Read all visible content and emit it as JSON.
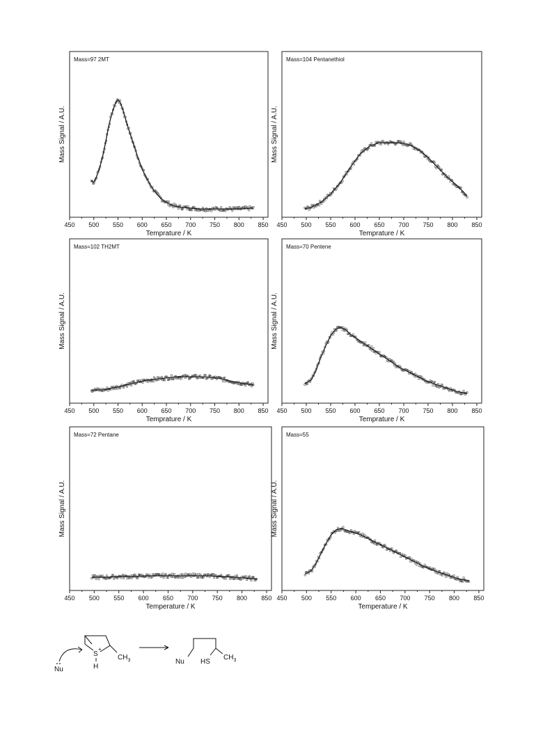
{
  "chart_data": [
    {
      "type": "scatter",
      "panel_label": "Mass=97 2MT",
      "xlabel": "Temprature / K",
      "ylabel": "Mass Signal / A.U.",
      "xlim": [
        450,
        860
      ],
      "ylim": [
        0,
        1
      ],
      "xticks": [
        "450",
        "500",
        "550",
        "600",
        "650",
        "700",
        "750",
        "800",
        "850"
      ],
      "series": [
        {
          "x": [
            495,
            500,
            505,
            510,
            515,
            520,
            525,
            530,
            535,
            540,
            545,
            550,
            555,
            560,
            565,
            570,
            580,
            590,
            600,
            610,
            620,
            630,
            640,
            650,
            660,
            670,
            680,
            700,
            720,
            740,
            760,
            780,
            800,
            830
          ],
          "y": [
            0.22,
            0.21,
            0.24,
            0.28,
            0.33,
            0.39,
            0.46,
            0.54,
            0.6,
            0.65,
            0.69,
            0.71,
            0.69,
            0.65,
            0.6,
            0.55,
            0.46,
            0.37,
            0.29,
            0.23,
            0.18,
            0.14,
            0.11,
            0.09,
            0.075,
            0.065,
            0.06,
            0.055,
            0.05,
            0.05,
            0.05,
            0.05,
            0.05,
            0.055
          ]
        }
      ]
    },
    {
      "type": "scatter",
      "panel_label": "Mass=104 Pentanethiol",
      "xlabel": "Temprature / K",
      "ylabel": "Mass Signal / A.U.",
      "xlim": [
        450,
        860
      ],
      "ylim": [
        0,
        1
      ],
      "xticks": [
        "450",
        "500",
        "550",
        "600",
        "650",
        "700",
        "750",
        "800",
        "850"
      ],
      "series": [
        {
          "x": [
            497,
            510,
            530,
            550,
            570,
            590,
            610,
            630,
            650,
            670,
            690,
            710,
            730,
            750,
            770,
            790,
            810,
            830
          ],
          "y": [
            0.05,
            0.06,
            0.09,
            0.14,
            0.21,
            0.3,
            0.38,
            0.43,
            0.45,
            0.45,
            0.45,
            0.44,
            0.41,
            0.36,
            0.3,
            0.24,
            0.19,
            0.13
          ]
        }
      ]
    },
    {
      "type": "scatter",
      "panel_label": "Mass=102 TH2MT",
      "xlabel": "Temprature / K",
      "ylabel": "Mass Signal / A.U.",
      "xlim": [
        450,
        860
      ],
      "ylim": [
        0,
        1
      ],
      "xticks": [
        "450",
        "500",
        "550",
        "600",
        "650",
        "700",
        "750",
        "800",
        "850"
      ],
      "series": [
        {
          "x": [
            495,
            520,
            550,
            580,
            610,
            640,
            670,
            700,
            730,
            760,
            790,
            810,
            830
          ],
          "y": [
            0.08,
            0.08,
            0.1,
            0.12,
            0.14,
            0.15,
            0.16,
            0.16,
            0.16,
            0.15,
            0.13,
            0.12,
            0.11
          ]
        }
      ]
    },
    {
      "type": "scatter",
      "panel_label": "Mass=70 Pentene",
      "xlabel": "Temprature / K",
      "ylabel": "Mass Signal / A.U.",
      "xlim": [
        450,
        860
      ],
      "ylim": [
        0,
        1
      ],
      "xticks": [
        "450",
        "500",
        "550",
        "600",
        "650",
        "700",
        "750",
        "800",
        "850"
      ],
      "series": [
        {
          "x": [
            497,
            510,
            520,
            530,
            540,
            550,
            560,
            570,
            580,
            590,
            610,
            630,
            650,
            670,
            690,
            710,
            730,
            750,
            770,
            790,
            810,
            830
          ],
          "y": [
            0.12,
            0.14,
            0.2,
            0.28,
            0.35,
            0.41,
            0.45,
            0.46,
            0.45,
            0.42,
            0.38,
            0.34,
            0.3,
            0.26,
            0.22,
            0.19,
            0.16,
            0.13,
            0.11,
            0.09,
            0.07,
            0.06
          ]
        }
      ]
    },
    {
      "type": "scatter",
      "panel_label": "Mass=72 Pentane",
      "xlabel": "Temperature / K",
      "ylabel": "Mass Signal / A.U.",
      "xlim": [
        450,
        860
      ],
      "ylim": [
        0,
        1
      ],
      "xticks": [
        "450",
        "500",
        "550",
        "600",
        "650",
        "700",
        "750",
        "800",
        "850"
      ],
      "series": [
        {
          "x": [
            495,
            520,
            550,
            580,
            610,
            640,
            670,
            700,
            730,
            760,
            790,
            810,
            830
          ],
          "y": [
            0.08,
            0.08,
            0.085,
            0.085,
            0.09,
            0.09,
            0.09,
            0.09,
            0.09,
            0.085,
            0.08,
            0.075,
            0.07
          ]
        }
      ]
    },
    {
      "type": "scatter",
      "panel_label": "Mass=55",
      "xlabel": "Temperature / K",
      "ylabel": "Mass Signal / A.U.",
      "xlim": [
        450,
        860
      ],
      "ylim": [
        0,
        1
      ],
      "xticks": [
        "450",
        "500",
        "550",
        "600",
        "650",
        "700",
        "750",
        "800",
        "850"
      ],
      "series": [
        {
          "x": [
            497,
            510,
            520,
            530,
            540,
            550,
            560,
            570,
            580,
            590,
            610,
            630,
            650,
            670,
            690,
            710,
            730,
            750,
            770,
            790,
            810,
            830
          ],
          "y": [
            0.1,
            0.12,
            0.17,
            0.23,
            0.29,
            0.34,
            0.37,
            0.38,
            0.37,
            0.36,
            0.34,
            0.31,
            0.28,
            0.25,
            0.22,
            0.19,
            0.16,
            0.13,
            0.11,
            0.09,
            0.07,
            0.06
          ]
        }
      ]
    }
  ],
  "scheme": {
    "s_plus": "S",
    "plus": "+",
    "h": "H",
    "ch3_left": "CH",
    "ch3_left_sub": "3",
    "nu_left": "Nu",
    "nu_right": "Nu",
    "hs": "HS",
    "ch3_right": "CH",
    "ch3_right_sub": "3"
  }
}
